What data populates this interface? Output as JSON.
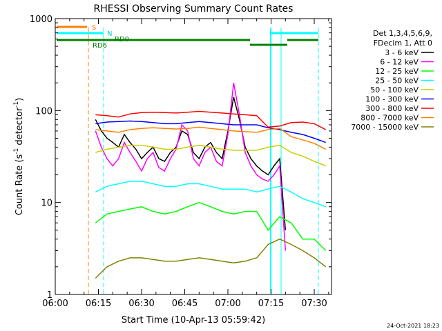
{
  "chart_data": {
    "type": "line",
    "title": "RHESSI Observing Summary Count Rates",
    "xlabel": "Start Time (10-Apr-13 05:59:42)",
    "ylabel_main": "Count Rate (s",
    "ylabel_sup": "-1",
    "ylabel_mid": " detector",
    "ylabel_end": ")",
    "y_scale": "log",
    "ylim": [
      1,
      1000
    ],
    "xlim_minutes": [
      0,
      96
    ],
    "x_ticks": [
      {
        "minute": 0,
        "label": "06:00"
      },
      {
        "minute": 15,
        "label": "06:15"
      },
      {
        "minute": 30,
        "label": "06:30"
      },
      {
        "minute": 45,
        "label": "06:45"
      },
      {
        "minute": 60,
        "label": "07:00"
      },
      {
        "minute": 75,
        "label": "07:15"
      },
      {
        "minute": 90,
        "label": "07:30"
      }
    ],
    "y_ticks": [
      {
        "value": 1,
        "label": "1"
      },
      {
        "value": 10,
        "label": "10"
      },
      {
        "value": 100,
        "label": "100"
      },
      {
        "value": 1000,
        "label": "1000"
      }
    ],
    "legend_header": [
      "Det 1,3,4,5,6,9,",
      "FDecim 1, Att 0"
    ],
    "series": [
      {
        "name": "3 - 6 keV",
        "color": "#000000",
        "x": [
          14,
          16,
          18,
          20,
          22,
          24,
          26,
          28,
          30,
          32,
          34,
          36,
          38,
          40,
          42,
          44,
          46,
          48,
          50,
          52,
          54,
          56,
          58,
          60,
          62,
          64,
          66,
          68,
          70,
          72,
          74,
          76,
          78,
          80
        ],
        "y": [
          80,
          60,
          50,
          45,
          40,
          55,
          45,
          38,
          30,
          35,
          40,
          30,
          28,
          35,
          40,
          60,
          55,
          35,
          30,
          40,
          45,
          35,
          30,
          60,
          140,
          80,
          40,
          30,
          25,
          22,
          20,
          25,
          30,
          5
        ]
      },
      {
        "name": "6 - 12 keV",
        "color": "#ff00ff",
        "x": [
          14,
          16,
          18,
          20,
          22,
          24,
          26,
          28,
          30,
          32,
          34,
          36,
          38,
          40,
          42,
          44,
          46,
          48,
          50,
          52,
          54,
          56,
          58,
          60,
          62,
          64,
          66,
          68,
          70,
          72,
          74,
          76,
          78,
          80
        ],
        "y": [
          60,
          40,
          30,
          25,
          30,
          45,
          35,
          28,
          22,
          30,
          35,
          24,
          22,
          30,
          38,
          70,
          60,
          30,
          25,
          35,
          40,
          28,
          25,
          55,
          200,
          90,
          35,
          25,
          20,
          18,
          17,
          20,
          25,
          3
        ]
      },
      {
        "name": "12 - 25 keV",
        "color": "#00ff00",
        "x": [
          14,
          18,
          22,
          26,
          30,
          34,
          38,
          42,
          46,
          50,
          54,
          58,
          62,
          66,
          70,
          74,
          78,
          82,
          86,
          90,
          94
        ],
        "y": [
          6,
          7.5,
          8,
          8.5,
          9,
          8,
          7.5,
          8,
          9,
          10,
          9,
          8,
          7.5,
          8,
          8,
          5,
          7,
          6,
          4,
          4,
          3
        ]
      },
      {
        "name": "25 - 50 keV",
        "color": "#00ffff",
        "x": [
          14,
          18,
          22,
          26,
          30,
          34,
          38,
          42,
          46,
          50,
          54,
          58,
          62,
          66,
          70,
          74,
          78,
          82,
          86,
          90,
          94
        ],
        "y": [
          13,
          15,
          16,
          17,
          17,
          16,
          15,
          15,
          16,
          16,
          15,
          14,
          14,
          14,
          13,
          14,
          15,
          13,
          11,
          10,
          9
        ]
      },
      {
        "name": "50 - 100 keV",
        "color": "#cccc00",
        "x": [
          14,
          18,
          22,
          26,
          30,
          34,
          38,
          42,
          46,
          50,
          54,
          58,
          62,
          66,
          70,
          74,
          78,
          82,
          86,
          90,
          94
        ],
        "y": [
          35,
          38,
          40,
          42,
          42,
          40,
          38,
          38,
          40,
          42,
          40,
          38,
          37,
          37,
          37,
          40,
          42,
          35,
          32,
          28,
          25
        ]
      },
      {
        "name": "100 - 300 keV",
        "color": "#0000ff",
        "x": [
          14,
          18,
          22,
          26,
          30,
          34,
          38,
          42,
          46,
          50,
          54,
          58,
          62,
          66,
          70,
          74,
          78,
          82,
          86,
          90,
          94
        ],
        "y": [
          72,
          75,
          76,
          77,
          76,
          74,
          72,
          72,
          74,
          76,
          74,
          72,
          70,
          70,
          70,
          65,
          62,
          58,
          55,
          50,
          45
        ]
      },
      {
        "name": "300 - 800 keV",
        "color": "#ff0000",
        "x": [
          14,
          18,
          22,
          26,
          30,
          34,
          38,
          42,
          46,
          50,
          54,
          58,
          62,
          66,
          70,
          74,
          78,
          82,
          86,
          90,
          94
        ],
        "y": [
          90,
          88,
          85,
          92,
          95,
          96,
          95,
          94,
          96,
          98,
          96,
          94,
          92,
          90,
          88,
          66,
          68,
          74,
          75,
          72,
          62
        ]
      },
      {
        "name": "800 - 7000 keV",
        "color": "#ff8000",
        "x": [
          14,
          18,
          22,
          26,
          30,
          34,
          38,
          42,
          46,
          50,
          54,
          58,
          62,
          66,
          70,
          74,
          78,
          82,
          86,
          90,
          94
        ],
        "y": [
          62,
          60,
          58,
          62,
          64,
          65,
          64,
          63,
          64,
          66,
          64,
          62,
          60,
          59,
          58,
          62,
          64,
          52,
          48,
          44,
          38
        ]
      },
      {
        "name": "7000 - 15000 keV",
        "color": "#808000",
        "x": [
          14,
          18,
          22,
          26,
          30,
          34,
          38,
          42,
          46,
          50,
          54,
          58,
          62,
          66,
          70,
          74,
          78,
          82,
          86,
          90,
          94
        ],
        "y": [
          1.5,
          2,
          2.3,
          2.5,
          2.5,
          2.4,
          2.3,
          2.3,
          2.4,
          2.5,
          2.4,
          2.3,
          2.2,
          2.3,
          2.5,
          3.5,
          4,
          3.5,
          3,
          2.5,
          2
        ]
      }
    ],
    "annotations": [
      "S",
      "N",
      "RD0",
      "RD6"
    ],
    "timestamp": "24-Oct-2021 18:23"
  }
}
